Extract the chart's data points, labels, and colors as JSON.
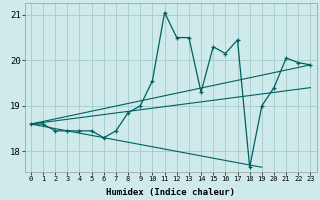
{
  "xlabel": "Humidex (Indice chaleur)",
  "background_color": "#ceeaea",
  "grid_color": "#aacece",
  "line_color": "#006060",
  "xlim": [
    -0.5,
    23.5
  ],
  "ylim": [
    17.55,
    21.25
  ],
  "yticks": [
    18,
    19,
    20,
    21
  ],
  "xticks": [
    0,
    1,
    2,
    3,
    4,
    5,
    6,
    7,
    8,
    9,
    10,
    11,
    12,
    13,
    14,
    15,
    16,
    17,
    18,
    19,
    20,
    21,
    22,
    23
  ],
  "series": [
    [
      0,
      18.6
    ],
    [
      1,
      18.6
    ],
    [
      2,
      18.45
    ],
    [
      3,
      18.45
    ],
    [
      4,
      18.45
    ],
    [
      5,
      18.45
    ],
    [
      6,
      18.3
    ],
    [
      7,
      18.45
    ],
    [
      8,
      18.85
    ],
    [
      9,
      19.0
    ],
    [
      10,
      19.55
    ],
    [
      11,
      21.05
    ],
    [
      12,
      20.5
    ],
    [
      13,
      20.5
    ],
    [
      14,
      19.3
    ],
    [
      15,
      20.3
    ],
    [
      16,
      20.15
    ],
    [
      17,
      20.45
    ],
    [
      18,
      17.65
    ],
    [
      19,
      19.0
    ],
    [
      20,
      19.4
    ],
    [
      21,
      20.05
    ],
    [
      22,
      19.95
    ],
    [
      23,
      19.9
    ]
  ],
  "fan_lines": [
    [
      [
        0,
        18.6
      ],
      [
        23,
        19.9
      ]
    ],
    [
      [
        0,
        18.6
      ],
      [
        19,
        17.65
      ]
    ],
    [
      [
        0,
        18.6
      ],
      [
        23,
        19.4
      ]
    ]
  ]
}
